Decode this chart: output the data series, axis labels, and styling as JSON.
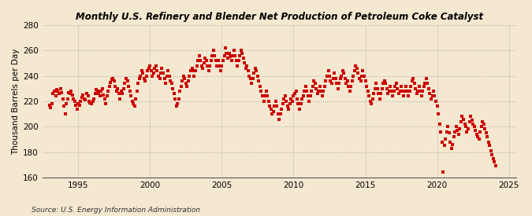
{
  "title": "Monthly U.S. Refinery and Blender Net Production of Petroleum Coke Catalyst",
  "ylabel": "Thousand Barrels per Day",
  "source": "Source: U.S. Energy Information Administration",
  "background_color": "#f5e8d0",
  "plot_bg_color": "#f5e8d0",
  "marker_color": "#cc0000",
  "ylim": [
    160,
    280
  ],
  "yticks": [
    160,
    180,
    200,
    220,
    240,
    260,
    280
  ],
  "xticks": [
    1995,
    2000,
    2005,
    2010,
    2015,
    2020,
    2025
  ],
  "xmin": 1992.5,
  "xmax": 2025.5,
  "data": [
    [
      1993.0,
      217
    ],
    [
      1993.08,
      215
    ],
    [
      1993.17,
      218
    ],
    [
      1993.25,
      226
    ],
    [
      1993.33,
      228
    ],
    [
      1993.42,
      224
    ],
    [
      1993.5,
      229
    ],
    [
      1993.58,
      228
    ],
    [
      1993.67,
      226
    ],
    [
      1993.75,
      230
    ],
    [
      1993.83,
      227
    ],
    [
      1993.92,
      222
    ],
    [
      1994.0,
      216
    ],
    [
      1994.08,
      210
    ],
    [
      1994.17,
      218
    ],
    [
      1994.25,
      222
    ],
    [
      1994.33,
      227
    ],
    [
      1994.42,
      226
    ],
    [
      1994.5,
      228
    ],
    [
      1994.58,
      225
    ],
    [
      1994.67,
      222
    ],
    [
      1994.75,
      220
    ],
    [
      1994.83,
      217
    ],
    [
      1994.92,
      214
    ],
    [
      1995.0,
      218
    ],
    [
      1995.08,
      217
    ],
    [
      1995.17,
      220
    ],
    [
      1995.25,
      223
    ],
    [
      1995.33,
      225
    ],
    [
      1995.42,
      222
    ],
    [
      1995.5,
      221
    ],
    [
      1995.58,
      226
    ],
    [
      1995.67,
      224
    ],
    [
      1995.75,
      220
    ],
    [
      1995.83,
      219
    ],
    [
      1995.92,
      218
    ],
    [
      1996.0,
      220
    ],
    [
      1996.08,
      222
    ],
    [
      1996.17,
      226
    ],
    [
      1996.25,
      229
    ],
    [
      1996.33,
      228
    ],
    [
      1996.42,
      226
    ],
    [
      1996.5,
      224
    ],
    [
      1996.58,
      228
    ],
    [
      1996.67,
      230
    ],
    [
      1996.75,
      225
    ],
    [
      1996.83,
      222
    ],
    [
      1996.92,
      218
    ],
    [
      1997.0,
      224
    ],
    [
      1997.08,
      228
    ],
    [
      1997.17,
      232
    ],
    [
      1997.25,
      235
    ],
    [
      1997.33,
      237
    ],
    [
      1997.42,
      238
    ],
    [
      1997.5,
      236
    ],
    [
      1997.58,
      232
    ],
    [
      1997.67,
      228
    ],
    [
      1997.75,
      230
    ],
    [
      1997.83,
      226
    ],
    [
      1997.92,
      222
    ],
    [
      1998.0,
      228
    ],
    [
      1998.08,
      226
    ],
    [
      1998.17,
      230
    ],
    [
      1998.25,
      234
    ],
    [
      1998.33,
      238
    ],
    [
      1998.42,
      236
    ],
    [
      1998.5,
      232
    ],
    [
      1998.58,
      228
    ],
    [
      1998.67,
      224
    ],
    [
      1998.75,
      220
    ],
    [
      1998.83,
      218
    ],
    [
      1998.92,
      216
    ],
    [
      1999.0,
      222
    ],
    [
      1999.08,
      228
    ],
    [
      1999.17,
      234
    ],
    [
      1999.25,
      238
    ],
    [
      1999.33,
      240
    ],
    [
      1999.42,
      244
    ],
    [
      1999.5,
      242
    ],
    [
      1999.58,
      238
    ],
    [
      1999.67,
      236
    ],
    [
      1999.75,
      240
    ],
    [
      1999.83,
      244
    ],
    [
      1999.92,
      246
    ],
    [
      2000.0,
      248
    ],
    [
      2000.08,
      244
    ],
    [
      2000.17,
      240
    ],
    [
      2000.25,
      242
    ],
    [
      2000.33,
      246
    ],
    [
      2000.42,
      248
    ],
    [
      2000.5,
      244
    ],
    [
      2000.58,
      240
    ],
    [
      2000.67,
      238
    ],
    [
      2000.75,
      242
    ],
    [
      2000.83,
      246
    ],
    [
      2000.92,
      242
    ],
    [
      2001.0,
      238
    ],
    [
      2001.08,
      234
    ],
    [
      2001.17,
      240
    ],
    [
      2001.25,
      244
    ],
    [
      2001.33,
      240
    ],
    [
      2001.42,
      236
    ],
    [
      2001.5,
      234
    ],
    [
      2001.58,
      230
    ],
    [
      2001.67,
      226
    ],
    [
      2001.75,
      222
    ],
    [
      2001.83,
      216
    ],
    [
      2001.92,
      218
    ],
    [
      2002.0,
      222
    ],
    [
      2002.08,
      228
    ],
    [
      2002.17,
      232
    ],
    [
      2002.25,
      236
    ],
    [
      2002.33,
      240
    ],
    [
      2002.42,
      238
    ],
    [
      2002.5,
      234
    ],
    [
      2002.58,
      232
    ],
    [
      2002.67,
      236
    ],
    [
      2002.75,
      240
    ],
    [
      2002.83,
      244
    ],
    [
      2002.92,
      246
    ],
    [
      2003.0,
      244
    ],
    [
      2003.08,
      240
    ],
    [
      2003.17,
      244
    ],
    [
      2003.25,
      248
    ],
    [
      2003.33,
      252
    ],
    [
      2003.42,
      256
    ],
    [
      2003.5,
      252
    ],
    [
      2003.58,
      248
    ],
    [
      2003.67,
      246
    ],
    [
      2003.75,
      250
    ],
    [
      2003.83,
      254
    ],
    [
      2003.92,
      252
    ],
    [
      2004.0,
      248
    ],
    [
      2004.08,
      244
    ],
    [
      2004.17,
      248
    ],
    [
      2004.25,
      252
    ],
    [
      2004.33,
      256
    ],
    [
      2004.42,
      260
    ],
    [
      2004.5,
      256
    ],
    [
      2004.58,
      252
    ],
    [
      2004.67,
      248
    ],
    [
      2004.75,
      252
    ],
    [
      2004.83,
      248
    ],
    [
      2004.92,
      244
    ],
    [
      2005.0,
      248
    ],
    [
      2005.08,
      252
    ],
    [
      2005.17,
      256
    ],
    [
      2005.25,
      262
    ],
    [
      2005.33,
      258
    ],
    [
      2005.42,
      254
    ],
    [
      2005.5,
      258
    ],
    [
      2005.58,
      255
    ],
    [
      2005.67,
      252
    ],
    [
      2005.75,
      256
    ],
    [
      2005.83,
      260
    ],
    [
      2005.92,
      256
    ],
    [
      2006.0,
      252
    ],
    [
      2006.08,
      248
    ],
    [
      2006.17,
      252
    ],
    [
      2006.25,
      256
    ],
    [
      2006.33,
      260
    ],
    [
      2006.42,
      258
    ],
    [
      2006.5,
      254
    ],
    [
      2006.58,
      250
    ],
    [
      2006.67,
      246
    ],
    [
      2006.75,
      248
    ],
    [
      2006.83,
      244
    ],
    [
      2006.92,
      240
    ],
    [
      2007.0,
      238
    ],
    [
      2007.08,
      234
    ],
    [
      2007.17,
      238
    ],
    [
      2007.25,
      242
    ],
    [
      2007.33,
      246
    ],
    [
      2007.42,
      244
    ],
    [
      2007.5,
      240
    ],
    [
      2007.58,
      236
    ],
    [
      2007.67,
      232
    ],
    [
      2007.75,
      228
    ],
    [
      2007.83,
      224
    ],
    [
      2007.92,
      220
    ],
    [
      2008.0,
      224
    ],
    [
      2008.08,
      228
    ],
    [
      2008.17,
      224
    ],
    [
      2008.25,
      220
    ],
    [
      2008.33,
      216
    ],
    [
      2008.42,
      214
    ],
    [
      2008.5,
      210
    ],
    [
      2008.58,
      212
    ],
    [
      2008.67,
      216
    ],
    [
      2008.75,
      220
    ],
    [
      2008.83,
      216
    ],
    [
      2008.92,
      210
    ],
    [
      2009.0,
      206
    ],
    [
      2009.08,
      210
    ],
    [
      2009.17,
      214
    ],
    [
      2009.25,
      218
    ],
    [
      2009.33,
      222
    ],
    [
      2009.42,
      224
    ],
    [
      2009.5,
      220
    ],
    [
      2009.58,
      216
    ],
    [
      2009.67,
      214
    ],
    [
      2009.75,
      218
    ],
    [
      2009.83,
      222
    ],
    [
      2009.92,
      220
    ],
    [
      2010.0,
      224
    ],
    [
      2010.08,
      226
    ],
    [
      2010.17,
      228
    ],
    [
      2010.25,
      222
    ],
    [
      2010.33,
      218
    ],
    [
      2010.42,
      214
    ],
    [
      2010.5,
      218
    ],
    [
      2010.58,
      222
    ],
    [
      2010.67,
      224
    ],
    [
      2010.75,
      228
    ],
    [
      2010.83,
      232
    ],
    [
      2010.92,
      228
    ],
    [
      2011.0,
      224
    ],
    [
      2011.08,
      220
    ],
    [
      2011.17,
      224
    ],
    [
      2011.25,
      228
    ],
    [
      2011.33,
      232
    ],
    [
      2011.42,
      236
    ],
    [
      2011.5,
      234
    ],
    [
      2011.58,
      230
    ],
    [
      2011.67,
      226
    ],
    [
      2011.75,
      228
    ],
    [
      2011.83,
      232
    ],
    [
      2011.92,
      228
    ],
    [
      2012.0,
      224
    ],
    [
      2012.08,
      228
    ],
    [
      2012.17,
      232
    ],
    [
      2012.25,
      236
    ],
    [
      2012.33,
      240
    ],
    [
      2012.42,
      244
    ],
    [
      2012.5,
      240
    ],
    [
      2012.58,
      236
    ],
    [
      2012.67,
      234
    ],
    [
      2012.75,
      238
    ],
    [
      2012.83,
      242
    ],
    [
      2012.92,
      238
    ],
    [
      2013.0,
      234
    ],
    [
      2013.08,
      230
    ],
    [
      2013.17,
      234
    ],
    [
      2013.25,
      238
    ],
    [
      2013.33,
      240
    ],
    [
      2013.42,
      244
    ],
    [
      2013.5,
      242
    ],
    [
      2013.58,
      238
    ],
    [
      2013.67,
      234
    ],
    [
      2013.75,
      236
    ],
    [
      2013.83,
      232
    ],
    [
      2013.92,
      228
    ],
    [
      2014.0,
      232
    ],
    [
      2014.08,
      236
    ],
    [
      2014.17,
      240
    ],
    [
      2014.25,
      244
    ],
    [
      2014.33,
      248
    ],
    [
      2014.42,
      246
    ],
    [
      2014.5,
      242
    ],
    [
      2014.58,
      238
    ],
    [
      2014.67,
      236
    ],
    [
      2014.75,
      240
    ],
    [
      2014.83,
      244
    ],
    [
      2014.92,
      240
    ],
    [
      2015.0,
      236
    ],
    [
      2015.08,
      232
    ],
    [
      2015.17,
      228
    ],
    [
      2015.25,
      224
    ],
    [
      2015.33,
      220
    ],
    [
      2015.42,
      218
    ],
    [
      2015.5,
      222
    ],
    [
      2015.58,
      226
    ],
    [
      2015.67,
      230
    ],
    [
      2015.75,
      234
    ],
    [
      2015.83,
      230
    ],
    [
      2015.92,
      226
    ],
    [
      2016.0,
      222
    ],
    [
      2016.08,
      226
    ],
    [
      2016.17,
      230
    ],
    [
      2016.25,
      234
    ],
    [
      2016.33,
      236
    ],
    [
      2016.42,
      234
    ],
    [
      2016.5,
      230
    ],
    [
      2016.58,
      226
    ],
    [
      2016.67,
      228
    ],
    [
      2016.75,
      232
    ],
    [
      2016.83,
      228
    ],
    [
      2016.92,
      224
    ],
    [
      2017.0,
      228
    ],
    [
      2017.08,
      232
    ],
    [
      2017.17,
      234
    ],
    [
      2017.25,
      230
    ],
    [
      2017.33,
      226
    ],
    [
      2017.42,
      228
    ],
    [
      2017.5,
      232
    ],
    [
      2017.58,
      228
    ],
    [
      2017.67,
      224
    ],
    [
      2017.75,
      228
    ],
    [
      2017.83,
      232
    ],
    [
      2017.92,
      228
    ],
    [
      2018.0,
      224
    ],
    [
      2018.08,
      228
    ],
    [
      2018.17,
      232
    ],
    [
      2018.25,
      236
    ],
    [
      2018.33,
      238
    ],
    [
      2018.42,
      234
    ],
    [
      2018.5,
      230
    ],
    [
      2018.58,
      226
    ],
    [
      2018.67,
      228
    ],
    [
      2018.75,
      232
    ],
    [
      2018.83,
      228
    ],
    [
      2018.92,
      224
    ],
    [
      2019.0,
      228
    ],
    [
      2019.08,
      232
    ],
    [
      2019.17,
      234
    ],
    [
      2019.25,
      238
    ],
    [
      2019.33,
      234
    ],
    [
      2019.42,
      230
    ],
    [
      2019.5,
      226
    ],
    [
      2019.58,
      222
    ],
    [
      2019.67,
      224
    ],
    [
      2019.75,
      228
    ],
    [
      2019.83,
      224
    ],
    [
      2019.92,
      220
    ],
    [
      2020.0,
      216
    ],
    [
      2020.08,
      210
    ],
    [
      2020.17,
      202
    ],
    [
      2020.25,
      196
    ],
    [
      2020.33,
      188
    ],
    [
      2020.42,
      164
    ],
    [
      2020.5,
      185
    ],
    [
      2020.58,
      190
    ],
    [
      2020.67,
      196
    ],
    [
      2020.75,
      200
    ],
    [
      2020.83,
      195
    ],
    [
      2020.92,
      188
    ],
    [
      2021.0,
      183
    ],
    [
      2021.08,
      186
    ],
    [
      2021.17,
      192
    ],
    [
      2021.25,
      196
    ],
    [
      2021.33,
      200
    ],
    [
      2021.42,
      197
    ],
    [
      2021.5,
      194
    ],
    [
      2021.58,
      198
    ],
    [
      2021.67,
      204
    ],
    [
      2021.75,
      208
    ],
    [
      2021.83,
      206
    ],
    [
      2021.92,
      202
    ],
    [
      2022.0,
      200
    ],
    [
      2022.08,
      196
    ],
    [
      2022.17,
      198
    ],
    [
      2022.25,
      204
    ],
    [
      2022.33,
      208
    ],
    [
      2022.42,
      205
    ],
    [
      2022.5,
      202
    ],
    [
      2022.58,
      200
    ],
    [
      2022.67,
      197
    ],
    [
      2022.75,
      194
    ],
    [
      2022.83,
      192
    ],
    [
      2022.92,
      190
    ],
    [
      2023.0,
      196
    ],
    [
      2023.08,
      200
    ],
    [
      2023.17,
      204
    ],
    [
      2023.25,
      202
    ],
    [
      2023.33,
      198
    ],
    [
      2023.42,
      195
    ],
    [
      2023.5,
      192
    ],
    [
      2023.58,
      188
    ],
    [
      2023.67,
      185
    ],
    [
      2023.75,
      181
    ],
    [
      2023.83,
      178
    ],
    [
      2023.92,
      175
    ],
    [
      2024.0,
      172
    ],
    [
      2024.08,
      169
    ]
  ]
}
